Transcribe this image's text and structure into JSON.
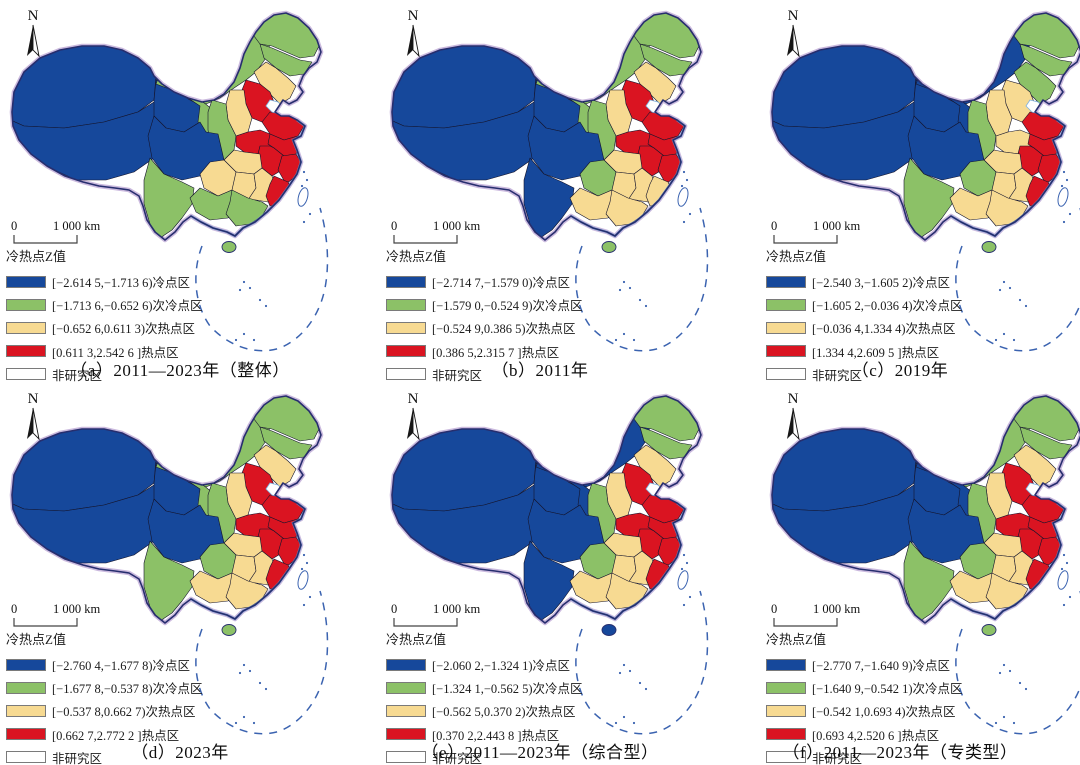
{
  "figure": {
    "north_label": "N",
    "legend_title": "冷热点Z值",
    "scale_zero": "0",
    "scale_label": "1 000 km",
    "colors": {
      "cold": "#16489b",
      "subcold": "#8cc167",
      "subhot": "#f7da92",
      "hot": "#da1421",
      "non": "#ffffff"
    },
    "category_names": {
      "cold": "冷点区",
      "subcold": "次冷点区",
      "subhot": "次热点区",
      "hot": "热点区",
      "non": "非研究区"
    }
  },
  "panels": [
    {
      "id": "a",
      "caption": "（a）2011—2023年（整体）",
      "legend": [
        {
          "category": "cold",
          "label": "[−2.614 5,−1.713 6)冷点区"
        },
        {
          "category": "subcold",
          "label": "[−1.713 6,−0.652 6)次冷点区"
        },
        {
          "category": "subhot",
          "label": "[−0.652 6,0.611 3)次热点区"
        },
        {
          "category": "hot",
          "label": "[0.611 3,2.542 6 ]热点区"
        },
        {
          "category": "non",
          "label": "非研究区"
        }
      ],
      "regions": {
        "xinjiang": "cold",
        "tibet": "cold",
        "qinghai": "cold",
        "sichuan": "cold",
        "gansu": "subcold",
        "neimenggu": "subcold",
        "heilongjiang": "subcold",
        "jilin": "subcold",
        "shaanxi": "subcold",
        "yunnan": "subcold",
        "guangxi": "subcold",
        "guangdong": "subcold",
        "hainan": "subcold",
        "liaoning": "subhot",
        "shanxi": "subhot",
        "hubei": "subhot",
        "hunan": "subhot",
        "jiangxi": "subhot",
        "guizhou": "subhot",
        "hebei": "hot",
        "shandong": "hot",
        "henan": "hot",
        "jiangsu": "hot",
        "anhui": "hot",
        "zhejiang": "hot",
        "fujian": "hot",
        "taiwan": "non"
      }
    },
    {
      "id": "b",
      "caption": "（b）2011年",
      "legend": [
        {
          "category": "cold",
          "label": "[−2.714 7,−1.579 0)冷点区"
        },
        {
          "category": "subcold",
          "label": "[−1.579 0,−0.524 9)次冷点区"
        },
        {
          "category": "subhot",
          "label": "[−0.524 9,0.386 5)次热点区"
        },
        {
          "category": "hot",
          "label": "[0.386 5,2.315 7 ]热点区"
        },
        {
          "category": "non",
          "label": "非研究区"
        }
      ],
      "regions": {
        "xinjiang": "cold",
        "tibet": "cold",
        "qinghai": "cold",
        "sichuan": "cold",
        "yunnan": "cold",
        "gansu": "subcold",
        "neimenggu": "subcold",
        "heilongjiang": "subcold",
        "jilin": "subcold",
        "shaanxi": "subcold",
        "guizhou": "subcold",
        "hainan": "subcold",
        "liaoning": "subhot",
        "shanxi": "subhot",
        "hubei": "subhot",
        "hunan": "subhot",
        "jiangxi": "subhot",
        "guangxi": "subhot",
        "guangdong": "subhot",
        "fujian": "subhot",
        "hebei": "hot",
        "shandong": "hot",
        "henan": "hot",
        "jiangsu": "hot",
        "anhui": "hot",
        "zhejiang": "hot",
        "taiwan": "non"
      }
    },
    {
      "id": "c",
      "caption": "（c）2019年",
      "legend": [
        {
          "category": "cold",
          "label": "[−2.540 3,−1.605 2)冷点区"
        },
        {
          "category": "subcold",
          "label": "[−1.605 2,−0.036 4)次冷点区"
        },
        {
          "category": "subhot",
          "label": "[−0.036 4,1.334 4)次热点区"
        },
        {
          "category": "hot",
          "label": "[1.334 4,2.609 5 ]热点区"
        },
        {
          "category": "non",
          "label": "非研究区"
        }
      ],
      "regions": {
        "xinjiang": "cold",
        "tibet": "cold",
        "qinghai": "cold",
        "gansu": "cold",
        "neimenggu": "cold",
        "sichuan": "cold",
        "heilongjiang": "subcold",
        "jilin": "subcold",
        "liaoning": "subcold",
        "shaanxi": "subcold",
        "guizhou": "subcold",
        "yunnan": "subcold",
        "hainan": "subcold",
        "hebei": "subhot",
        "shanxi": "subhot",
        "henan": "subhot",
        "hubei": "subhot",
        "hunan": "subhot",
        "jiangxi": "subhot",
        "guangxi": "subhot",
        "guangdong": "subhot",
        "shandong": "hot",
        "jiangsu": "hot",
        "anhui": "hot",
        "zhejiang": "hot",
        "fujian": "hot",
        "taiwan": "non"
      }
    },
    {
      "id": "d",
      "caption": "（d）2023年",
      "legend": [
        {
          "category": "cold",
          "label": "[−2.760 4,−1.677 8)冷点区"
        },
        {
          "category": "subcold",
          "label": "[−1.677 8,−0.537 8)次冷点区"
        },
        {
          "category": "subhot",
          "label": "[−0.537 8,0.662 7)次热点区"
        },
        {
          "category": "hot",
          "label": "[0.662 7,2.772 2 ]热点区"
        },
        {
          "category": "non",
          "label": "非研究区"
        }
      ],
      "regions": {
        "xinjiang": "cold",
        "tibet": "cold",
        "qinghai": "cold",
        "sichuan": "cold",
        "gansu": "subcold",
        "neimenggu": "subcold",
        "heilongjiang": "subcold",
        "jilin": "subcold",
        "shaanxi": "subcold",
        "guizhou": "subcold",
        "yunnan": "subcold",
        "hainan": "subcold",
        "liaoning": "subhot",
        "shanxi": "subhot",
        "hubei": "subhot",
        "hunan": "subhot",
        "jiangxi": "subhot",
        "guangxi": "subhot",
        "guangdong": "subhot",
        "hebei": "hot",
        "shandong": "hot",
        "henan": "hot",
        "jiangsu": "hot",
        "anhui": "hot",
        "zhejiang": "hot",
        "fujian": "hot",
        "taiwan": "non"
      }
    },
    {
      "id": "e",
      "caption": "（e）2011—2023年（综合型）",
      "legend": [
        {
          "category": "cold",
          "label": "[−2.060 2,−1.324 1)冷点区"
        },
        {
          "category": "subcold",
          "label": "[−1.324 1,−0.562 5)次冷点区"
        },
        {
          "category": "subhot",
          "label": "[−0.562 5,0.370 2)次热点区"
        },
        {
          "category": "hot",
          "label": "[0.370 2,2.443 8 ]热点区"
        },
        {
          "category": "non",
          "label": "非研究区"
        }
      ],
      "regions": {
        "xinjiang": "cold",
        "tibet": "cold",
        "qinghai": "cold",
        "gansu": "cold",
        "neimenggu": "cold",
        "sichuan": "cold",
        "yunnan": "cold",
        "hainan": "cold",
        "heilongjiang": "subcold",
        "jilin": "subcold",
        "shaanxi": "subcold",
        "guizhou": "subcold",
        "liaoning": "subhot",
        "shanxi": "subhot",
        "hubei": "subhot",
        "hunan": "subhot",
        "jiangxi": "subhot",
        "guangxi": "subhot",
        "guangdong": "subhot",
        "hebei": "hot",
        "shandong": "hot",
        "henan": "hot",
        "jiangsu": "hot",
        "anhui": "hot",
        "zhejiang": "hot",
        "fujian": "hot",
        "taiwan": "non"
      }
    },
    {
      "id": "f",
      "caption": "（f）2011—2023年（专类型）",
      "legend": [
        {
          "category": "cold",
          "label": "[−2.770 7,−1.640 9)冷点区"
        },
        {
          "category": "subcold",
          "label": "[−1.640 9,−0.542 1)次冷点区"
        },
        {
          "category": "subhot",
          "label": "[−0.542 1,0.693 4)次热点区"
        },
        {
          "category": "hot",
          "label": "[0.693 4,2.520 6 ]热点区"
        },
        {
          "category": "non",
          "label": "非研究区"
        }
      ],
      "regions": {
        "xinjiang": "cold",
        "tibet": "cold",
        "qinghai": "cold",
        "gansu": "cold",
        "sichuan": "cold",
        "neimenggu": "subcold",
        "heilongjiang": "subcold",
        "jilin": "subcold",
        "shaanxi": "subcold",
        "guizhou": "subcold",
        "yunnan": "subcold",
        "hainan": "subcold",
        "liaoning": "subhot",
        "shanxi": "subhot",
        "hubei": "subhot",
        "hunan": "subhot",
        "jiangxi": "subhot",
        "guangxi": "subhot",
        "guangdong": "subhot",
        "hebei": "hot",
        "shandong": "hot",
        "henan": "hot",
        "jiangsu": "hot",
        "anhui": "hot",
        "zhejiang": "hot",
        "fujian": "hot",
        "taiwan": "non"
      }
    }
  ]
}
